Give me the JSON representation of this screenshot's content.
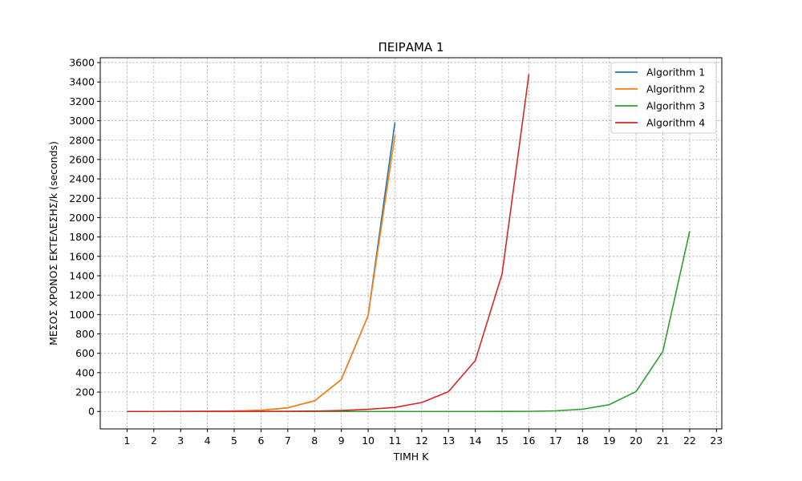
{
  "chart_data": {
    "type": "line",
    "title": "ΠΕΙΡΑΜΑ 1",
    "xlabel": "ΤΙΜΗ K",
    "ylabel": "ΜΕΣΟΣ ΧΡΟΝΟΣ ΕΚΤΕΛΕΣΗΣ/k (seconds)",
    "xlim": [
      0,
      23.2
    ],
    "ylim": [
      -180,
      3650
    ],
    "xticks": [
      1,
      2,
      3,
      4,
      5,
      6,
      7,
      8,
      9,
      10,
      11,
      12,
      13,
      14,
      15,
      16,
      17,
      18,
      19,
      20,
      21,
      22,
      23
    ],
    "yticks": [
      0,
      200,
      400,
      600,
      800,
      1000,
      1200,
      1400,
      1600,
      1800,
      2000,
      2200,
      2400,
      2600,
      2800,
      3000,
      3200,
      3400,
      3600
    ],
    "grid": true,
    "legend_position": "top-right",
    "series": [
      {
        "name": "Algorithm 1",
        "color": "#1f77b4",
        "x": [
          1,
          2,
          3,
          4,
          5,
          6,
          7,
          8,
          9,
          10,
          11
        ],
        "y": [
          0,
          0,
          0.5,
          2,
          5,
          12,
          38,
          110,
          330,
          990,
          2985
        ]
      },
      {
        "name": "Algorithm 2",
        "color": "#ff7f0e",
        "x": [
          1,
          2,
          3,
          4,
          5,
          6,
          7,
          8,
          9,
          10,
          11
        ],
        "y": [
          0,
          0,
          0.5,
          2,
          5,
          12,
          38,
          110,
          330,
          990,
          2850
        ]
      },
      {
        "name": "Algorithm 3",
        "color": "#2ca02c",
        "x": [
          1,
          2,
          3,
          4,
          5,
          6,
          7,
          8,
          9,
          10,
          11,
          12,
          13,
          14,
          15,
          16,
          17,
          18,
          19,
          20,
          21,
          22
        ],
        "y": [
          0,
          0,
          0,
          0,
          0,
          0,
          0,
          0,
          0,
          0,
          0,
          0,
          0,
          0,
          0.5,
          1,
          6,
          23,
          70,
          205,
          620,
          1860
        ]
      },
      {
        "name": "Algorithm 4",
        "color": "#d62728",
        "x": [
          1,
          2,
          3,
          4,
          5,
          6,
          7,
          8,
          9,
          10,
          11,
          12,
          13,
          14,
          15,
          16
        ],
        "y": [
          0,
          0,
          0,
          0,
          0.5,
          1,
          2,
          4,
          10,
          22,
          42,
          92,
          205,
          525,
          1420,
          3480
        ]
      }
    ]
  }
}
